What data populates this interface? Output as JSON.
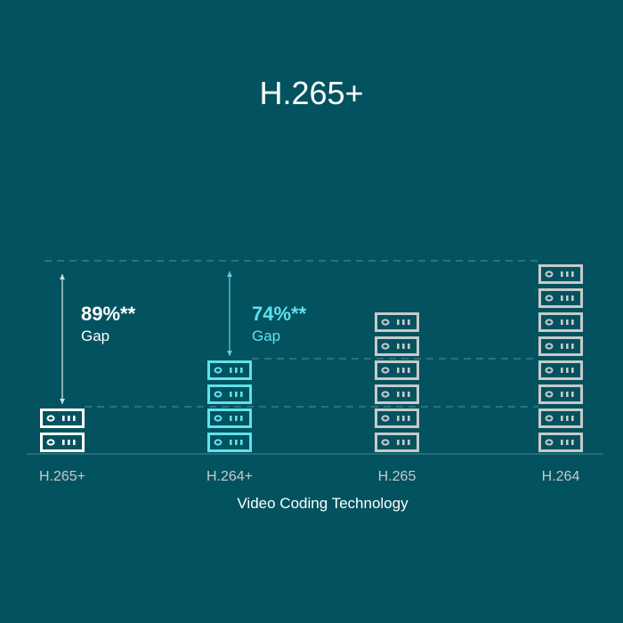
{
  "chart_data": {
    "type": "bar",
    "title": "H.265+",
    "xlabel": "Video Coding Technology",
    "ylabel": "",
    "categories": [
      "H.265+",
      "H.264+",
      "H.265",
      "H.264"
    ],
    "values": [
      2,
      4,
      6,
      8
    ],
    "unit_icon": "server-icon",
    "colors": [
      "#ffffff",
      "#5fe1ef",
      "#c9c9c9",
      "#c9c9c9"
    ],
    "annotations": [
      {
        "value": "89%**",
        "label": "Gap",
        "color": "#ffffff"
      },
      {
        "value": "74%**",
        "label": "Gap",
        "color": "#5fe1ef"
      }
    ],
    "grid": "dashed reference lines"
  }
}
